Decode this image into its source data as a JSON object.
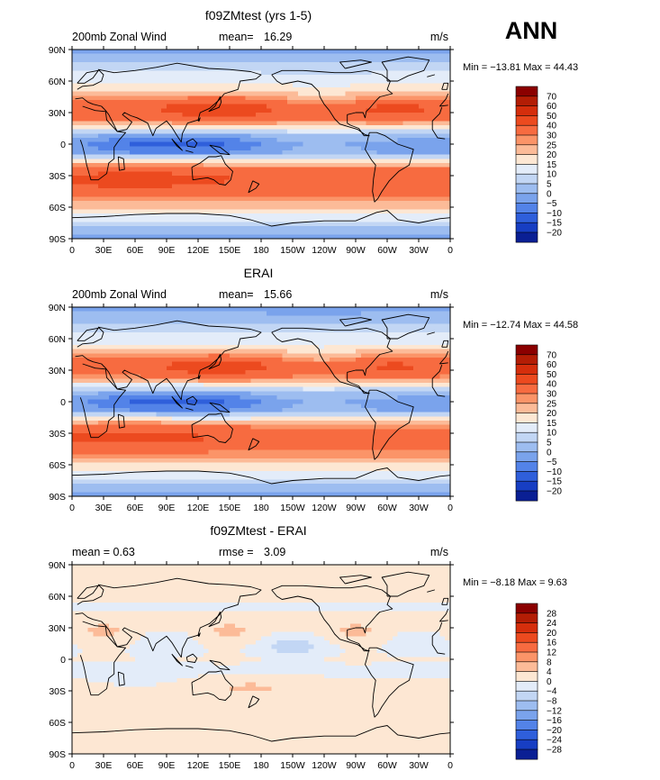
{
  "season": "ANN",
  "x_ticks": [
    "0",
    "30E",
    "60E",
    "90E",
    "120E",
    "150E",
    "180",
    "150W",
    "120W",
    "90W",
    "60W",
    "30W",
    "0"
  ],
  "y_ticks": [
    "90N",
    "60N",
    "30N",
    "0",
    "30S",
    "60S",
    "90S"
  ],
  "chart_data": [
    {
      "type": "heatmap",
      "title": "f09ZMtest (yrs 1-5)",
      "left_label": "200mb  Zonal Wind",
      "center_label": "mean=",
      "center_value": "16.29",
      "units": "m/s",
      "min_max": "Min = −13.81  Max =   44.43",
      "colorbar_levels": [
        "70",
        "60",
        "50",
        "40",
        "30",
        "25",
        "20",
        "15",
        "10",
        "5",
        "0",
        "−5",
        "−10",
        "−15",
        "−20"
      ],
      "colorbar_colors": [
        "#8b0000",
        "#b31d05",
        "#d52e0c",
        "#ec4a1f",
        "#f76b40",
        "#fb9468",
        "#fcbb98",
        "#fde7d3",
        "#e3ecf9",
        "#c2d6f4",
        "#9dbdf0",
        "#7aa3ec",
        "#5383e8",
        "#2f5fdb",
        "#173ec3",
        "#0a1f94"
      ],
      "lat_profile": [
        [
          -90,
          -2
        ],
        [
          -82,
          2
        ],
        [
          -75,
          8
        ],
        [
          -68,
          14
        ],
        [
          -60,
          20
        ],
        [
          -52,
          26
        ],
        [
          -45,
          33
        ],
        [
          -37,
          38
        ],
        [
          -30,
          38
        ],
        [
          -22,
          28
        ],
        [
          -15,
          14
        ],
        [
          -8,
          -1
        ],
        [
          0,
          -3
        ],
        [
          8,
          2
        ],
        [
          15,
          14
        ],
        [
          22,
          28
        ],
        [
          30,
          38
        ],
        [
          36,
          37
        ],
        [
          45,
          26
        ],
        [
          52,
          18
        ],
        [
          60,
          13
        ],
        [
          68,
          10
        ],
        [
          75,
          6
        ],
        [
          82,
          2
        ],
        [
          90,
          -3
        ]
      ],
      "ylim": [
        -90,
        90
      ]
    },
    {
      "type": "heatmap",
      "title": "ERAI",
      "left_label": "200mb  Zonal Wind",
      "center_label": "mean=",
      "center_value": "15.66",
      "units": "m/s",
      "min_max": "Min = −12.74  Max =   44.58",
      "colorbar_levels": [
        "70",
        "60",
        "50",
        "40",
        "30",
        "25",
        "20",
        "15",
        "10",
        "5",
        "0",
        "−5",
        "−10",
        "−15",
        "−20"
      ],
      "colorbar_colors": [
        "#8b0000",
        "#b31d05",
        "#d52e0c",
        "#ec4a1f",
        "#f76b40",
        "#fb9468",
        "#fcbb98",
        "#fde7d3",
        "#e3ecf9",
        "#c2d6f4",
        "#9dbdf0",
        "#7aa3ec",
        "#5383e8",
        "#2f5fdb",
        "#173ec3",
        "#0a1f94"
      ],
      "lat_profile": [
        [
          -90,
          -2
        ],
        [
          -82,
          2
        ],
        [
          -75,
          8
        ],
        [
          -68,
          13
        ],
        [
          -60,
          19
        ],
        [
          -52,
          25
        ],
        [
          -45,
          32
        ],
        [
          -37,
          37
        ],
        [
          -30,
          36
        ],
        [
          -22,
          27
        ],
        [
          -15,
          13
        ],
        [
          -8,
          -1
        ],
        [
          0,
          -3
        ],
        [
          8,
          2
        ],
        [
          15,
          13
        ],
        [
          22,
          27
        ],
        [
          30,
          37
        ],
        [
          36,
          36
        ],
        [
          45,
          25
        ],
        [
          52,
          17
        ],
        [
          60,
          12
        ],
        [
          68,
          9
        ],
        [
          75,
          5
        ],
        [
          82,
          1
        ],
        [
          90,
          -3
        ]
      ],
      "ylim": [
        -90,
        90
      ]
    },
    {
      "type": "heatmap",
      "title": "f09ZMtest - ERAI",
      "left_label": "mean =    0.63",
      "center_label": "rmse =",
      "center_value": "3.09",
      "units": "m/s",
      "min_max": "Min =   −8.18  Max =    9.63",
      "colorbar_levels": [
        "28",
        "24",
        "20",
        "16",
        "12",
        "8",
        "4",
        "0",
        "−4",
        "−8",
        "−12",
        "−16",
        "−20",
        "−24",
        "−28"
      ],
      "colorbar_colors": [
        "#8b0000",
        "#b31d05",
        "#d52e0c",
        "#ec4a1f",
        "#f76b40",
        "#fb9468",
        "#fcbb98",
        "#fde7d3",
        "#e3ecf9",
        "#c2d6f4",
        "#9dbdf0",
        "#7aa3ec",
        "#5383e8",
        "#2f5fdb",
        "#173ec3",
        "#0a1f94"
      ],
      "lat_profile": [
        [
          -90,
          0.5
        ],
        [
          -80,
          1
        ],
        [
          -70,
          2
        ],
        [
          -60,
          3
        ],
        [
          -50,
          2
        ],
        [
          -40,
          1
        ],
        [
          -30,
          2
        ],
        [
          -20,
          0.5
        ],
        [
          -10,
          -1
        ],
        [
          0,
          0.5
        ],
        [
          10,
          -1
        ],
        [
          20,
          0.5
        ],
        [
          30,
          3
        ],
        [
          40,
          1
        ],
        [
          50,
          -1
        ],
        [
          60,
          1
        ],
        [
          70,
          2
        ],
        [
          80,
          0.5
        ],
        [
          90,
          0
        ]
      ],
      "ylim": [
        -90,
        90
      ]
    }
  ]
}
